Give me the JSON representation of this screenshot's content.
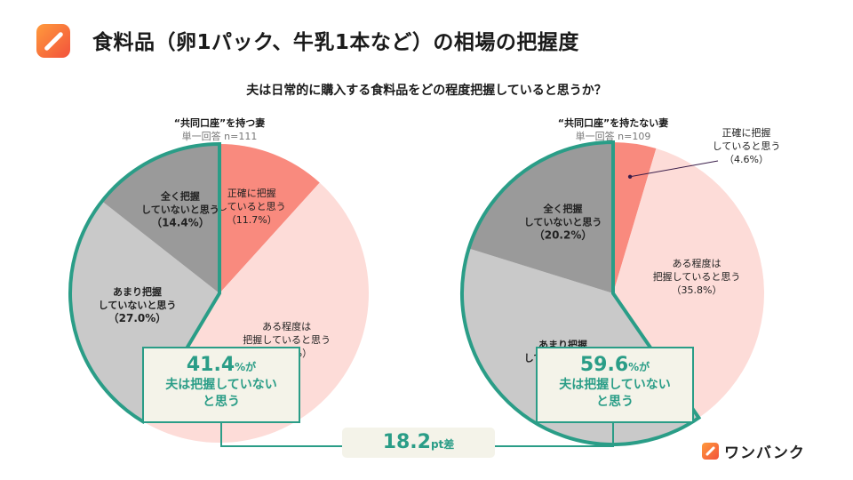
{
  "header": {
    "title": "食料品（卵1パック、牛乳1本など）の相場の把握度",
    "logo_icon": "pencil-app-icon"
  },
  "question": "夫は日常的に購入する食料品をどの程度把握していると思うか？",
  "chart_data": [
    {
      "type": "pie",
      "title": "“共同口座”を持つ妻",
      "subtitle": "単一回答 n=111",
      "start": "top",
      "direction": "clockwise",
      "slices": [
        {
          "label": "正確に把握していると思う",
          "lines": [
            "正確に把握",
            "していると思う",
            "（11.7%）"
          ],
          "value": 11.7,
          "color": "#f98a7e",
          "bold": false
        },
        {
          "label": "ある程度は把握していると思う",
          "lines": [
            "ある程度は",
            "把握していると思う",
            "（46.8%）"
          ],
          "value": 46.8,
          "color": "#fddcd8",
          "bold": false
        },
        {
          "label": "あまり把握していないと思う",
          "lines": [
            "あまり把握",
            "していないと思う",
            "（27.0%）"
          ],
          "value": 27.0,
          "color": "#c9c9c9",
          "bold": true
        },
        {
          "label": "全く把握していないと思う",
          "lines": [
            "全く把握",
            "していないと思う",
            "（14.4%）"
          ],
          "value": 14.4,
          "color": "#9a9a9a",
          "bold": true
        }
      ],
      "callout": {
        "value": "41.4",
        "unit": "%が",
        "text1": "夫は把握していない",
        "text2": "と思う"
      }
    },
    {
      "type": "pie",
      "title": "“共同口座”を持たない妻",
      "subtitle": "単一回答 n=109",
      "start": "top",
      "direction": "clockwise",
      "slices": [
        {
          "label": "正確に把握していると思う",
          "lines": [
            "正確に把握",
            "していると思う",
            "（4.6%）"
          ],
          "value": 4.6,
          "color": "#f98a7e",
          "bold": false,
          "external": true
        },
        {
          "label": "ある程度は把握していると思う",
          "lines": [
            "ある程度は",
            "把握していると思う",
            "（35.8%）"
          ],
          "value": 35.8,
          "color": "#fddcd8",
          "bold": false
        },
        {
          "label": "あまり把握していないと思う",
          "lines": [
            "あまり把握",
            "していないと思う",
            "（39.4%）"
          ],
          "value": 39.4,
          "color": "#c9c9c9",
          "bold": true
        },
        {
          "label": "全く把握していないと思う",
          "lines": [
            "全く把握",
            "していないと思う",
            "（20.2%）"
          ],
          "value": 20.2,
          "color": "#9a9a9a",
          "bold": true
        }
      ],
      "callout": {
        "value": "59.6",
        "unit": "%が",
        "text1": "夫は把握していない",
        "text2": "と思う"
      }
    }
  ],
  "difference": {
    "value": "18.2",
    "unit": "pt差"
  },
  "accent_color": "#2a9d87",
  "brand": {
    "name": "ワンバンク",
    "icon": "pencil-app-icon"
  }
}
